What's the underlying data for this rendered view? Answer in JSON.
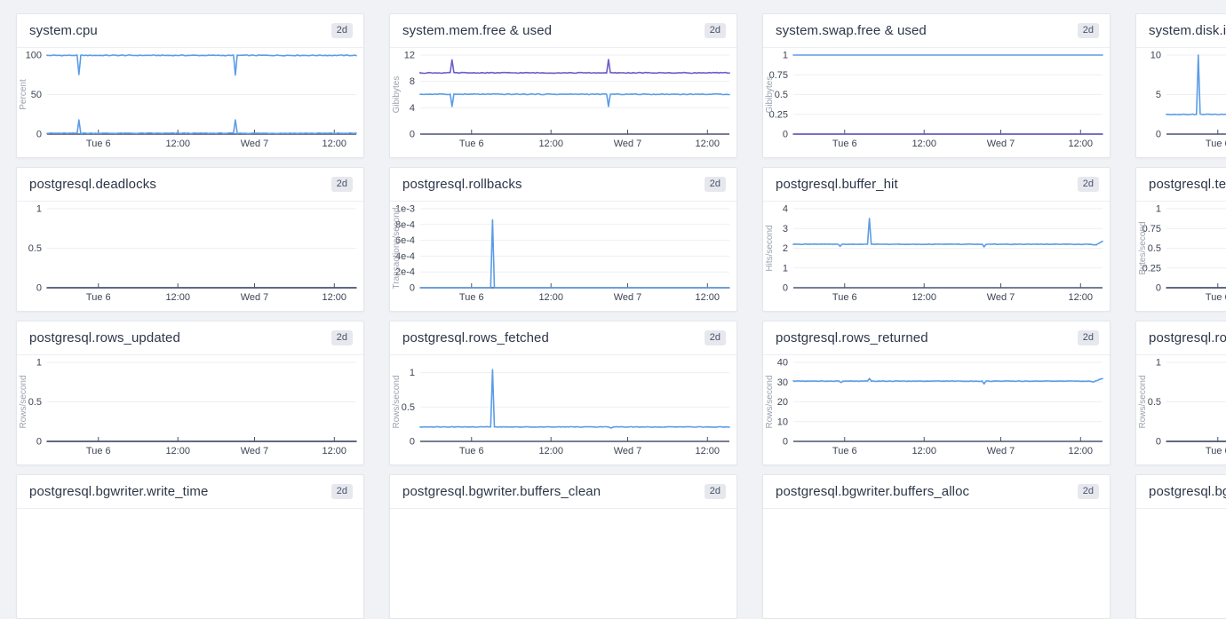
{
  "page": {
    "time_range_badge": "2d"
  },
  "colors": {
    "blue": "#5b9ce6",
    "purple": "#6a5ecb",
    "dark": "#4a5270",
    "axis": "#4a5270",
    "grid": "#edeff3",
    "tick_text": "#3c4454",
    "unit_text": "#9ba2ae"
  },
  "xticks": {
    "labels": [
      "Tue 6",
      "12:00",
      "Wed 7",
      "12:00"
    ],
    "positions": [
      0.166,
      0.423,
      0.671,
      0.929
    ]
  },
  "panels": [
    {
      "title": "system.cpu",
      "ylabel": "Percent",
      "ymax": 100,
      "yticks": [
        [
          100,
          "100"
        ],
        [
          50,
          "50"
        ],
        [
          0,
          "0"
        ]
      ],
      "series": [
        {
          "color": "blue",
          "noise": 0.5,
          "points": [
            [
              0,
              99.6
            ],
            [
              0.097,
              99.6
            ],
            [
              0.103,
              75
            ],
            [
              0.109,
              99.6
            ],
            [
              0.603,
              99.6
            ],
            [
              0.609,
              75
            ],
            [
              0.615,
              99.6
            ],
            [
              1,
              99.6
            ]
          ]
        },
        {
          "color": "blue",
          "noise": 0.4,
          "points": [
            [
              0,
              1
            ],
            [
              0.097,
              1
            ],
            [
              0.103,
              18
            ],
            [
              0.109,
              1
            ],
            [
              0.603,
              1
            ],
            [
              0.609,
              18
            ],
            [
              0.615,
              1
            ],
            [
              1,
              1
            ]
          ]
        }
      ]
    },
    {
      "title": "system.mem.free & used",
      "ylabel": "Gibibytes",
      "ymax": 12,
      "yticks": [
        [
          12,
          "12"
        ],
        [
          8,
          "8"
        ],
        [
          4,
          "4"
        ],
        [
          0,
          "0"
        ]
      ],
      "series": [
        {
          "color": "purple",
          "noise": 0.06,
          "points": [
            [
              0,
              9.3
            ],
            [
              0.097,
              9.3
            ],
            [
              0.103,
              11.3
            ],
            [
              0.109,
              9.3
            ],
            [
              0.603,
              9.3
            ],
            [
              0.609,
              11.3
            ],
            [
              0.615,
              9.3
            ],
            [
              1,
              9.3
            ]
          ]
        },
        {
          "color": "blue",
          "noise": 0.06,
          "points": [
            [
              0,
              6.05
            ],
            [
              0.097,
              6.05
            ],
            [
              0.103,
              4.25
            ],
            [
              0.109,
              6.05
            ],
            [
              0.603,
              6.05
            ],
            [
              0.609,
              4.25
            ],
            [
              0.615,
              6.05
            ],
            [
              1,
              6.05
            ]
          ]
        }
      ]
    },
    {
      "title": "system.swap.free & used",
      "ylabel": "Gibibytes",
      "ymax": 1,
      "yticks": [
        [
          1,
          "1"
        ],
        [
          0.75,
          "0.75"
        ],
        [
          0.5,
          "0.5"
        ],
        [
          0.25,
          "0.25"
        ],
        [
          0,
          "0"
        ]
      ],
      "series": [
        {
          "color": "blue",
          "noise": 0,
          "points": [
            [
              0,
              1
            ],
            [
              1,
              1
            ]
          ]
        },
        {
          "color": "purple",
          "noise": 0,
          "points": [
            [
              0,
              0
            ],
            [
              1,
              0
            ]
          ]
        }
      ]
    },
    {
      "title": "system.disk.in_use",
      "ylabel": "",
      "ymax": 10,
      "yticks": [
        [
          10,
          "10"
        ],
        [
          5,
          "5"
        ],
        [
          0,
          "0"
        ]
      ],
      "series": [
        {
          "color": "blue",
          "noise": 0.04,
          "points": [
            [
              0,
              2.5
            ],
            [
              0.097,
              2.5
            ],
            [
              0.103,
              10
            ],
            [
              0.109,
              2.5
            ],
            [
              1,
              2.5
            ]
          ]
        }
      ]
    },
    {
      "title": "postgresql.deadlocks",
      "ylabel": "",
      "ymax": 1,
      "yticks": [
        [
          1,
          "1"
        ],
        [
          0.5,
          "0.5"
        ],
        [
          0,
          "0"
        ]
      ],
      "series": [
        {
          "color": "dark",
          "noise": 0,
          "points": [
            [
              0,
              0
            ],
            [
              1,
              0
            ]
          ]
        }
      ]
    },
    {
      "title": "postgresql.rollbacks",
      "ylabel": "Transactions/second",
      "ymax": 0.001,
      "yticks": [
        [
          0.001,
          "1e-3"
        ],
        [
          0.0008,
          "8e-4"
        ],
        [
          0.0006,
          "6e-4"
        ],
        [
          0.0004,
          "4e-4"
        ],
        [
          0.0002,
          "2e-4"
        ],
        [
          0,
          "0"
        ]
      ],
      "series": [
        {
          "color": "blue",
          "noise": 0,
          "points": [
            [
              0,
              0
            ],
            [
              0.228,
              0
            ],
            [
              0.234,
              0.00086
            ],
            [
              0.24,
              0
            ],
            [
              1,
              0
            ]
          ]
        }
      ]
    },
    {
      "title": "postgresql.buffer_hit",
      "ylabel": "Hits/second",
      "ymax": 4,
      "yticks": [
        [
          4,
          "4"
        ],
        [
          3,
          "3"
        ],
        [
          2,
          "2"
        ],
        [
          1,
          "1"
        ],
        [
          0,
          "0"
        ]
      ],
      "series": [
        {
          "color": "blue",
          "noise": 0.012,
          "points": [
            [
              0,
              2.2
            ],
            [
              0.145,
              2.2
            ],
            [
              0.151,
              2.1
            ],
            [
              0.157,
              2.2
            ],
            [
              0.24,
              2.2
            ],
            [
              0.246,
              3.5
            ],
            [
              0.252,
              2.2
            ],
            [
              0.611,
              2.2
            ],
            [
              0.617,
              2.08
            ],
            [
              0.623,
              2.2
            ],
            [
              0.955,
              2.2
            ],
            [
              0.98,
              2.17
            ],
            [
              1,
              2.35
            ]
          ]
        }
      ]
    },
    {
      "title": "postgresql.temp_bytes",
      "ylabel": "Bytes/second",
      "ymax": 1,
      "yticks": [
        [
          1,
          "1"
        ],
        [
          0.75,
          "0.75"
        ],
        [
          0.5,
          "0.5"
        ],
        [
          0.25,
          "0.25"
        ],
        [
          0,
          "0"
        ]
      ],
      "series": [
        {
          "color": "dark",
          "noise": 0,
          "points": [
            [
              0,
              0
            ],
            [
              1,
              0
            ]
          ]
        }
      ]
    },
    {
      "title": "postgresql.rows_updated",
      "ylabel": "Rows/second",
      "ymax": 1,
      "yticks": [
        [
          1,
          "1"
        ],
        [
          0.5,
          "0.5"
        ],
        [
          0,
          "0"
        ]
      ],
      "series": [
        {
          "color": "dark",
          "noise": 0,
          "points": [
            [
              0,
              0
            ],
            [
              1,
              0
            ]
          ]
        }
      ]
    },
    {
      "title": "postgresql.rows_fetched",
      "ylabel": "Rows/second",
      "ymax": 1.15,
      "yticks": [
        [
          1,
          "1"
        ],
        [
          0.5,
          "0.5"
        ],
        [
          0,
          "0"
        ]
      ],
      "series": [
        {
          "color": "blue",
          "noise": 0.004,
          "points": [
            [
              0,
              0.21
            ],
            [
              0.228,
              0.21
            ],
            [
              0.234,
              1.04
            ],
            [
              0.24,
              0.21
            ],
            [
              0.611,
              0.21
            ],
            [
              0.617,
              0.19
            ],
            [
              0.623,
              0.21
            ],
            [
              1,
              0.21
            ]
          ]
        }
      ]
    },
    {
      "title": "postgresql.rows_returned",
      "ylabel": "Rows/second",
      "ymax": 40,
      "yticks": [
        [
          40,
          "40"
        ],
        [
          30,
          "30"
        ],
        [
          20,
          "20"
        ],
        [
          10,
          "10"
        ],
        [
          0,
          "0"
        ]
      ],
      "series": [
        {
          "color": "blue",
          "noise": 0.12,
          "points": [
            [
              0,
              30.5
            ],
            [
              0.148,
              30.5
            ],
            [
              0.154,
              29.7
            ],
            [
              0.16,
              30.5
            ],
            [
              0.24,
              30.5
            ],
            [
              0.246,
              31.9
            ],
            [
              0.252,
              30.5
            ],
            [
              0.611,
              30.5
            ],
            [
              0.617,
              29
            ],
            [
              0.623,
              30.5
            ],
            [
              0.955,
              30.5
            ],
            [
              0.97,
              30.1
            ],
            [
              0.985,
              31
            ],
            [
              1,
              31.9
            ]
          ]
        }
      ]
    },
    {
      "title": "postgresql.rows_inserted",
      "ylabel": "Rows/second",
      "ymax": 1,
      "yticks": [
        [
          1,
          "1"
        ],
        [
          0.5,
          "0.5"
        ],
        [
          0,
          "0"
        ]
      ],
      "series": [
        {
          "color": "dark",
          "noise": 0,
          "points": [
            [
              0,
              0
            ],
            [
              1,
              0
            ]
          ]
        }
      ]
    },
    {
      "title": "postgresql.bgwriter.write_time",
      "ylabel": "",
      "ymax": 1,
      "yticks": [],
      "series": []
    },
    {
      "title": "postgresql.bgwriter.buffers_clean",
      "ylabel": "",
      "ymax": 1,
      "yticks": [],
      "series": []
    },
    {
      "title": "postgresql.bgwriter.buffers_alloc",
      "ylabel": "",
      "ymax": 1,
      "yticks": [],
      "series": []
    },
    {
      "title": "postgresql.bgwriter.buffers_backend",
      "ylabel": "",
      "ymax": 1,
      "yticks": [],
      "series": []
    }
  ]
}
